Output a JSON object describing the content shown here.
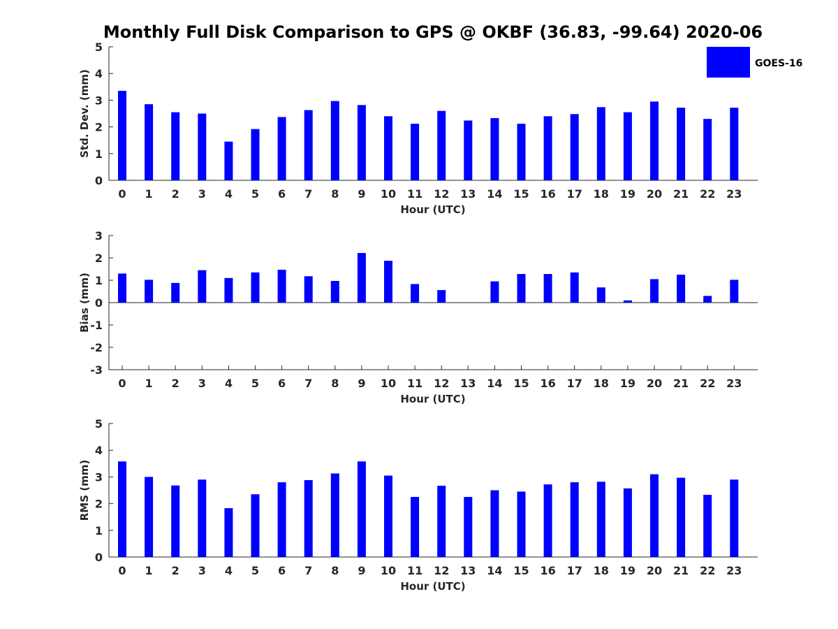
{
  "title": "Monthly Full Disk Comparison to GPS @ OKBF (36.83, -99.64) 2020-06",
  "legend": {
    "label": "GOES-16",
    "color": "#0000ff",
    "placement": "top-right"
  },
  "chart_data": [
    {
      "type": "bar",
      "name": "std-dev",
      "categories": [
        "0",
        "1",
        "2",
        "3",
        "4",
        "5",
        "6",
        "7",
        "8",
        "9",
        "10",
        "11",
        "12",
        "13",
        "14",
        "15",
        "16",
        "17",
        "18",
        "19",
        "20",
        "21",
        "22",
        "23"
      ],
      "series": [
        {
          "name": "GOES-16",
          "values": [
            3.35,
            2.85,
            2.55,
            2.5,
            1.45,
            1.92,
            2.37,
            2.63,
            2.97,
            2.82,
            2.4,
            2.12,
            2.6,
            2.24,
            2.33,
            2.12,
            2.4,
            2.48,
            2.74,
            2.55,
            2.95,
            2.72,
            2.3,
            2.72
          ]
        }
      ],
      "xlabel": "Hour (UTC)",
      "ylabel": "Std. Dev. (mm)",
      "ylim": [
        0,
        5
      ],
      "yticks": [
        "0",
        "1",
        "2",
        "3",
        "4",
        "5"
      ],
      "grid": false
    },
    {
      "type": "bar",
      "name": "bias",
      "categories": [
        "0",
        "1",
        "2",
        "3",
        "4",
        "5",
        "6",
        "7",
        "8",
        "9",
        "10",
        "11",
        "12",
        "13",
        "14",
        "15",
        "16",
        "17",
        "18",
        "19",
        "20",
        "21",
        "22",
        "23"
      ],
      "series": [
        {
          "name": "GOES-16",
          "values": [
            1.3,
            1.02,
            0.88,
            1.45,
            1.1,
            1.35,
            1.47,
            1.18,
            0.97,
            2.22,
            1.87,
            0.83,
            0.56,
            0,
            0.95,
            1.28,
            1.28,
            1.35,
            0.68,
            0.1,
            1.05,
            1.25,
            0.3,
            1.02
          ]
        }
      ],
      "xlabel": "Hour (UTC)",
      "ylabel": "Bias (mm)",
      "ylim": [
        -3,
        3
      ],
      "yticks": [
        "-3",
        "-2",
        "-1",
        "0",
        "1",
        "2",
        "3"
      ],
      "grid": false
    },
    {
      "type": "bar",
      "name": "rms",
      "categories": [
        "0",
        "1",
        "2",
        "3",
        "4",
        "5",
        "6",
        "7",
        "8",
        "9",
        "10",
        "11",
        "12",
        "13",
        "14",
        "15",
        "16",
        "17",
        "18",
        "19",
        "20",
        "21",
        "22",
        "23"
      ],
      "series": [
        {
          "name": "GOES-16",
          "values": [
            3.58,
            3.0,
            2.68,
            2.9,
            1.83,
            2.35,
            2.8,
            2.88,
            3.13,
            3.58,
            3.05,
            2.25,
            2.67,
            2.25,
            2.5,
            2.45,
            2.72,
            2.8,
            2.82,
            2.57,
            3.1,
            2.97,
            2.33,
            2.9
          ]
        }
      ],
      "xlabel": "Hour (UTC)",
      "ylabel": "RMS (mm)",
      "ylim": [
        0,
        5
      ],
      "yticks": [
        "0",
        "1",
        "2",
        "3",
        "4",
        "5"
      ],
      "grid": false
    }
  ]
}
